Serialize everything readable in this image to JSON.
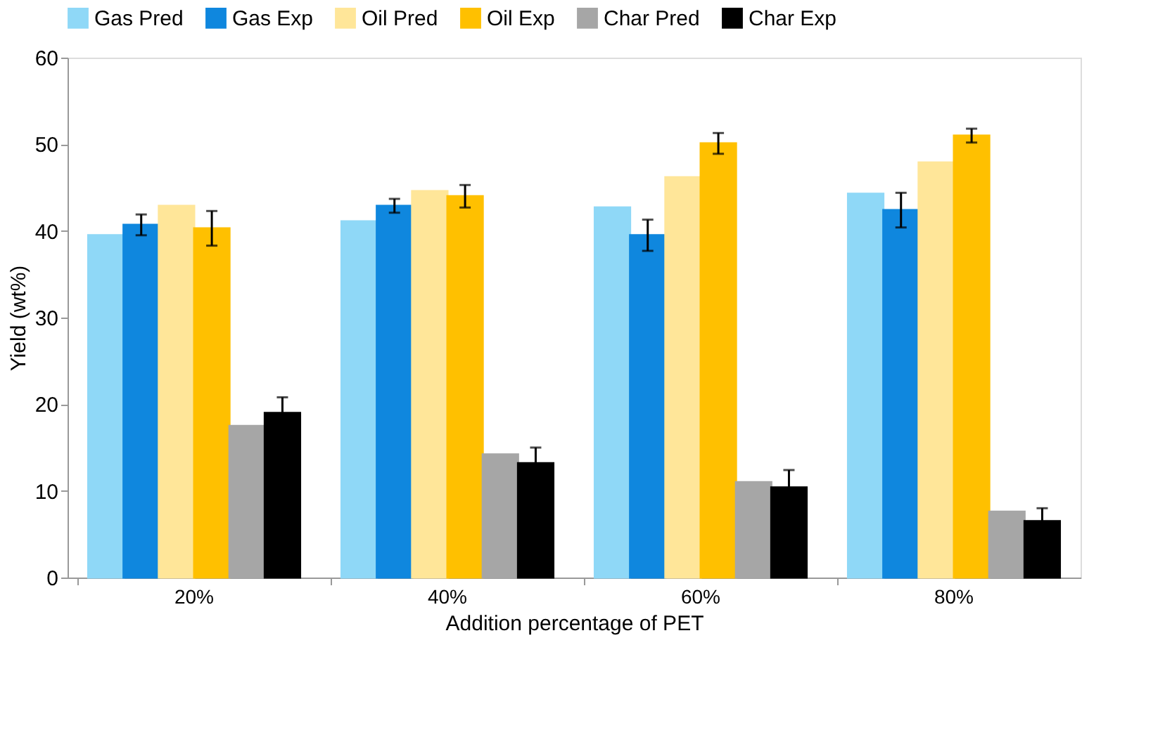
{
  "chart_data": {
    "type": "bar",
    "xlabel": "Addition percentage of PET",
    "ylabel": "Yield (wt%)",
    "categories": [
      "20%",
      "40%",
      "60%",
      "80%"
    ],
    "series": [
      {
        "name": "Gas Pred",
        "color": "#8fd8f7",
        "values": [
          39.5,
          41.1,
          42.7,
          44.3
        ]
      },
      {
        "name": "Gas Exp",
        "color": "#0f87de",
        "values": [
          40.7,
          42.9,
          39.5,
          42.4
        ],
        "errors": [
          1.2,
          0.8,
          1.8,
          2.0
        ]
      },
      {
        "name": "Oil Pred",
        "color": "#ffe699",
        "values": [
          42.9,
          44.6,
          46.2,
          47.9
        ]
      },
      {
        "name": "Oil Exp",
        "color": "#ffc000",
        "values": [
          40.3,
          44.0,
          50.1,
          51.0
        ],
        "errors": [
          2.0,
          1.3,
          1.2,
          0.8
        ]
      },
      {
        "name": "Char Pred",
        "color": "#a6a6a6",
        "values": [
          17.5,
          14.2,
          11.0,
          7.6
        ]
      },
      {
        "name": "Char Exp",
        "color": "#000000",
        "values": [
          19.0,
          13.2,
          10.4,
          6.5
        ],
        "errors": [
          1.8,
          1.8,
          2.0,
          1.5
        ]
      }
    ],
    "ylim": [
      0,
      60
    ],
    "yticks": [
      0,
      10,
      20,
      30,
      40,
      50,
      60
    ],
    "grid": false,
    "legend": "top"
  }
}
